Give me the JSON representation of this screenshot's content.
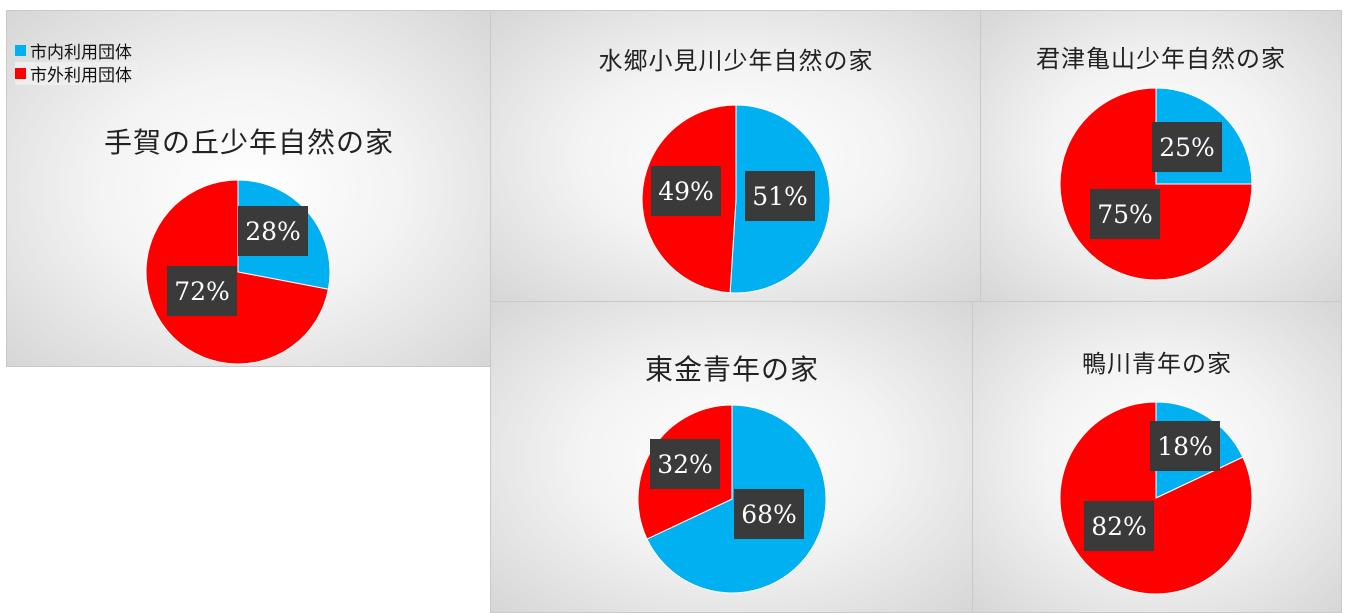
{
  "colors": {
    "inside": "#00b0f0",
    "outside": "#ff0000",
    "label_bg": "#3a3a3a"
  },
  "legend": {
    "items": [
      {
        "label": "市内利用団体",
        "color": "#00b0f0"
      },
      {
        "label": "市外利用団体",
        "color": "#ff0000"
      }
    ]
  },
  "chart_data": [
    {
      "type": "pie",
      "title": "手賀の丘少年自然の家",
      "categories": [
        "市内利用団体",
        "市外利用団体"
      ],
      "values": [
        28,
        72
      ],
      "labels": [
        "28%",
        "72%"
      ]
    },
    {
      "type": "pie",
      "title": "水郷小見川少年自然の家",
      "categories": [
        "市内利用団体",
        "市外利用団体"
      ],
      "values": [
        51,
        49
      ],
      "labels": [
        "51%",
        "49%"
      ]
    },
    {
      "type": "pie",
      "title": "君津亀山少年自然の家",
      "categories": [
        "市内利用団体",
        "市外利用団体"
      ],
      "values": [
        25,
        75
      ],
      "labels": [
        "25%",
        "75%"
      ]
    },
    {
      "type": "pie",
      "title": "東金青年の家",
      "categories": [
        "市内利用団体",
        "市外利用団体"
      ],
      "values": [
        68,
        32
      ],
      "labels": [
        "68%",
        "32%"
      ]
    },
    {
      "type": "pie",
      "title": "鴨川青年の家",
      "categories": [
        "市内利用団体",
        "市外利用団体"
      ],
      "values": [
        18,
        82
      ],
      "labels": [
        "18%",
        "82%"
      ]
    }
  ]
}
